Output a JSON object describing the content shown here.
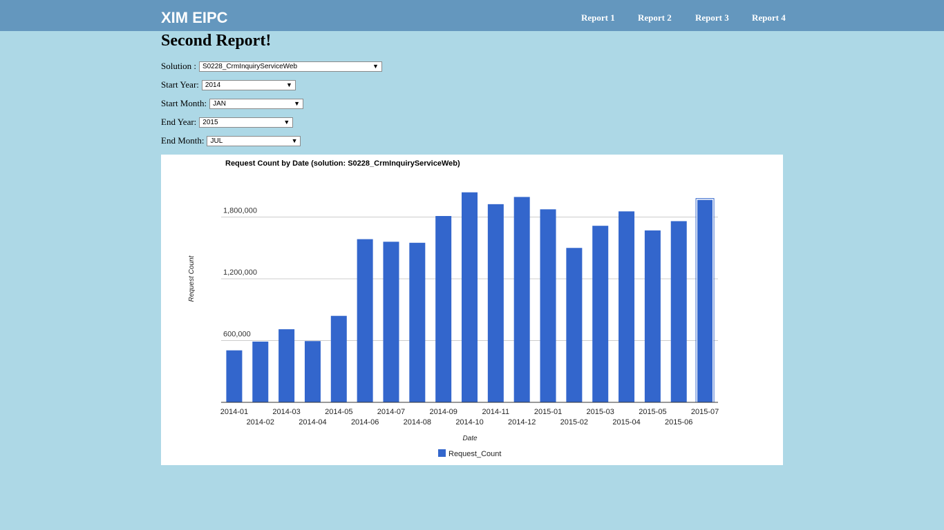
{
  "header": {
    "brand": "XIM EIPC",
    "nav": [
      "Report 1",
      "Report 2",
      "Report 3",
      "Report 4"
    ]
  },
  "page": {
    "title": "Second Report!"
  },
  "form": {
    "solution_label": "Solution :",
    "solution_value": "S0228_CrmInquiryServiceWeb",
    "start_year_label": "Start Year:",
    "start_year_value": "2014",
    "start_month_label": "Start Month:",
    "start_month_value": "JAN",
    "end_year_label": "End Year:",
    "end_year_value": "2015",
    "end_month_label": "End Month:",
    "end_month_value": "JUL"
  },
  "chart_data": {
    "type": "bar",
    "title": "Request Count by Date (solution:  S0228_CrmInquiryServiceWeb)",
    "xlabel": "Date",
    "ylabel": "Request Count",
    "categories": [
      "2014-01",
      "2014-02",
      "2014-03",
      "2014-04",
      "2014-05",
      "2014-06",
      "2014-07",
      "2014-08",
      "2014-09",
      "2014-10",
      "2014-11",
      "2014-12",
      "2015-01",
      "2015-02",
      "2015-03",
      "2015-04",
      "2015-05",
      "2015-06",
      "2015-07"
    ],
    "series": [
      {
        "name": "Request_Count",
        "values": [
          505000,
          590000,
          710000,
          595000,
          840000,
          1585000,
          1560000,
          1550000,
          1810000,
          2040000,
          1925000,
          1995000,
          1875000,
          1500000,
          1715000,
          1855000,
          1670000,
          1760000,
          1970000
        ]
      }
    ],
    "yticks": [
      600000,
      1200000,
      1800000
    ],
    "ytick_labels": [
      "600,000",
      "1,200,000",
      "1,800,000"
    ],
    "ylim": [
      0,
      2400000
    ],
    "grid": true,
    "legend": "bottom",
    "highlighted": "2015-07",
    "colors": {
      "bar": "#3366cc"
    }
  }
}
